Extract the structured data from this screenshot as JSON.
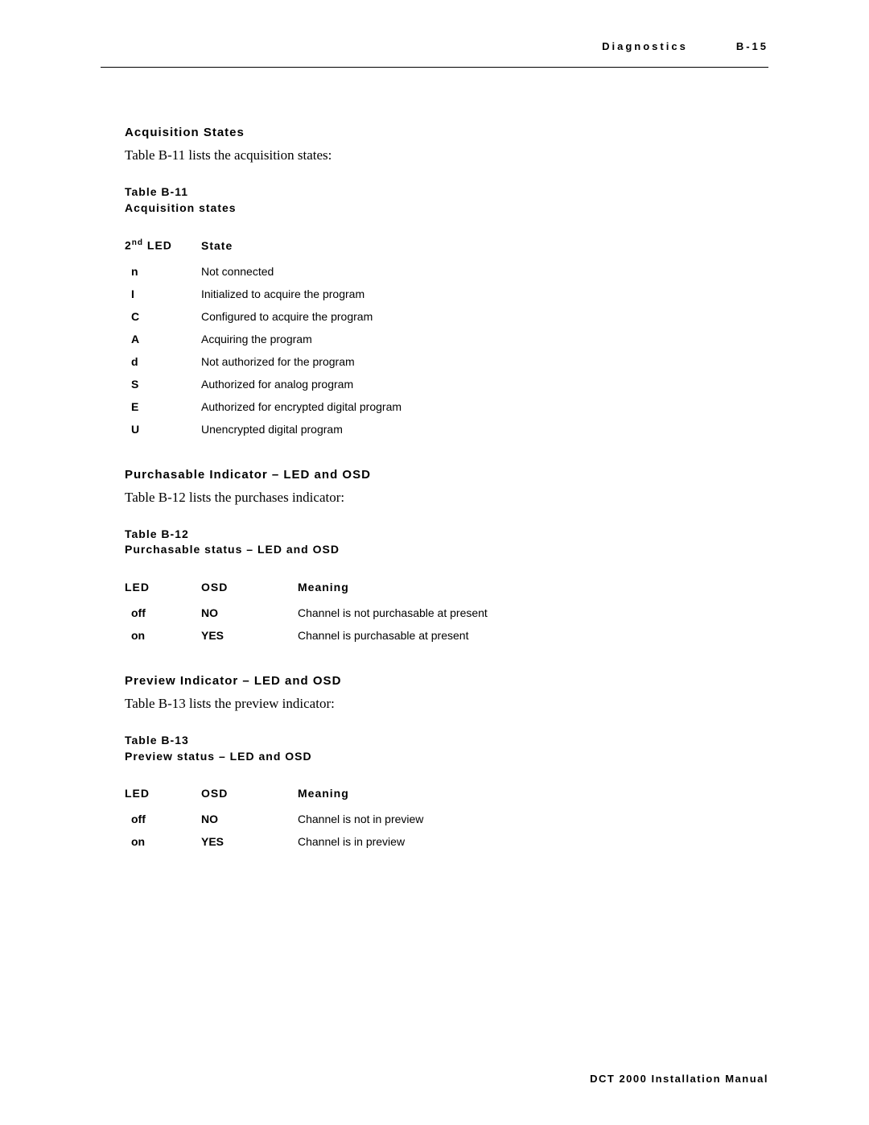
{
  "header": {
    "section": "Diagnostics",
    "page": "B-15"
  },
  "s1": {
    "heading": "Acquisition States",
    "intro": "Table B-11 lists the acquisition states:",
    "table_label_a": "Table B-11",
    "table_label_b": "Acquisition states",
    "table": {
      "col1_prefix": "2",
      "col1_sup": "nd",
      "col1_suffix": " LED",
      "col2": "State",
      "rows": [
        {
          "c": "n",
          "s": "Not connected"
        },
        {
          "c": "I",
          "s": "Initialized to acquire the program"
        },
        {
          "c": "C",
          "s": "Configured to acquire the program"
        },
        {
          "c": "A",
          "s": "Acquiring the program"
        },
        {
          "c": "d",
          "s": "Not authorized for the program"
        },
        {
          "c": "S",
          "s": "Authorized for analog program"
        },
        {
          "c": "E",
          "s": "Authorized for encrypted digital program"
        },
        {
          "c": "U",
          "s": "Unencrypted digital program"
        }
      ]
    }
  },
  "s2": {
    "heading": "Purchasable Indicator – LED and OSD",
    "intro": "Table B-12 lists the purchases indicator:",
    "table_label_a": "Table B-12",
    "table_label_b": "Purchasable status – LED and OSD",
    "table": {
      "col1": "LED",
      "col2": "OSD",
      "col3": "Meaning",
      "rows": [
        {
          "a": "off",
          "b": "NO",
          "c": "Channel is not purchasable at present"
        },
        {
          "a": "on",
          "b": "YES",
          "c": "Channel is purchasable at present"
        }
      ]
    }
  },
  "s3": {
    "heading": "Preview Indicator – LED and OSD",
    "intro": "Table B-13 lists the preview indicator:",
    "table_label_a": "Table B-13",
    "table_label_b": "Preview status – LED and OSD",
    "table": {
      "col1": "LED",
      "col2": "OSD",
      "col3": "Meaning",
      "rows": [
        {
          "a": "off",
          "b": "NO",
          "c": "Channel is not in preview"
        },
        {
          "a": "on",
          "b": "YES",
          "c": "Channel is in preview"
        }
      ]
    }
  },
  "footer": "DCT 2000 Installation Manual"
}
